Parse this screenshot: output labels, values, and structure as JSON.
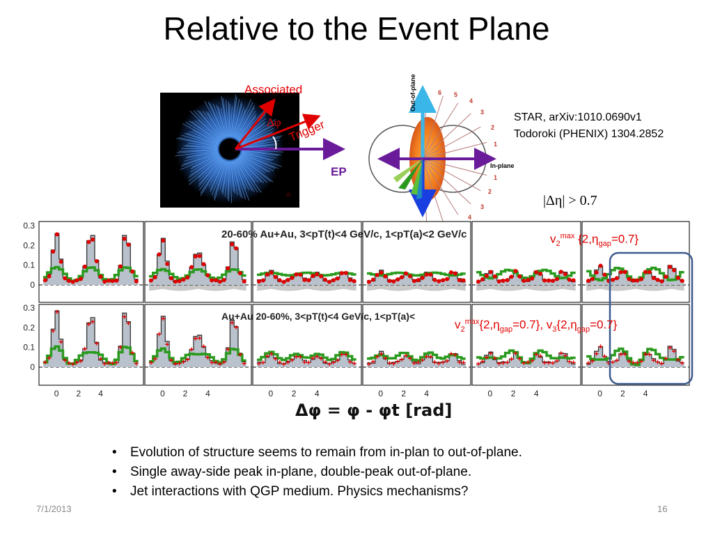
{
  "slide": {
    "title": "Relative to the Event Plane",
    "date": "7/1/2013",
    "page_number": "16"
  },
  "diagram_left": {
    "associated": "Associated",
    "delta_phi": "Δφ",
    "trigger": "Trigger",
    "phi_s": "φS",
    "ep": "EP"
  },
  "diagram_right": {
    "out_of_plane": "Out-of-plane",
    "in_plane": "In-plane",
    "upper_numbers": [
      "6",
      "5",
      "4",
      "3",
      "2",
      "1"
    ],
    "lower_numbers": [
      "1",
      "2",
      "3",
      "4"
    ]
  },
  "references": {
    "line1": "STAR, arXiv:1010.0690v1",
    "line2": "Todoroki (PHENIX) 1304.2852"
  },
  "eta_cut": "|Δη| > 0.7",
  "labels": {
    "v2_text": "v2max {2,ηgap=0.7}",
    "v2v3_text": "v2max{2,ηgap=0.7}, v3{2,ηgap=0.7}",
    "top_row_title": "20-60% Au+Au, 3<pT(t)<4 GeV/c, 1<pT(a)<2 GeV/c",
    "bottom_row_title": "Au+Au 20-60%, 3<pT(t)<4 GeV/c, 1<pT(a)<"
  },
  "axes": {
    "x_label": "Δφ = φ - φt  [rad]",
    "y_ticks": [
      "0.3",
      "0.2",
      "0.1",
      "0"
    ],
    "x_ticks": [
      "0",
      "2",
      "4"
    ]
  },
  "bullets": [
    "Evolution of structure seems to remain from in-plan to out-of-plane.",
    "Single away-side peak in-plane, double-peak out-of-plane.",
    "Jet interactions with QGP medium. Physics mechanisms?"
  ],
  "colors": {
    "data_red": "#e00000",
    "fit_green": "#2a9a1e",
    "band_gray": "#b9c2cc",
    "ep_purple": "#6a1b9a",
    "highlight_blue": "#3b5a8c"
  }
}
